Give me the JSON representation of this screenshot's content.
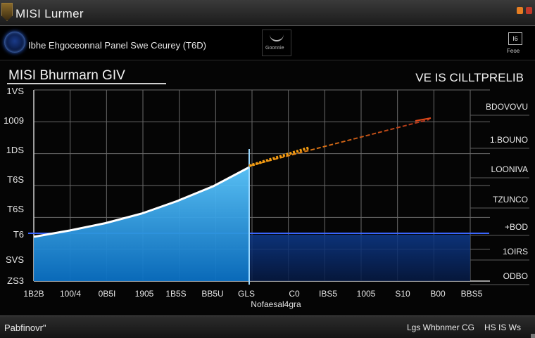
{
  "window": {
    "title": "MISI Lurmer",
    "accent_colors": [
      "#c0392b",
      "#e67e22"
    ]
  },
  "toolbar": {
    "label": "Ibhe Ehgoceonnal Panel Swe Ceurey (T6D)",
    "group_text": "Goonnie",
    "right_box": "I6",
    "right_text": "Feoe"
  },
  "chart": {
    "title": "MISI Bhurmarn GIV",
    "subtitle": "VE IS CILLTPRELIB"
  },
  "chart_data": {
    "type": "area",
    "y_tick_labels": [
      "1VS",
      "1009",
      "1DS",
      "T6S",
      "T6S",
      "T6",
      "SVS",
      "ZS3"
    ],
    "x_tick_labels": [
      "1B2B",
      "100/4",
      "0B5I",
      "1905",
      "1B5S",
      "BB5U",
      "GLS",
      "C0",
      "IBS5",
      "1005",
      "S10",
      "B00",
      "BBS5"
    ],
    "right_labels": [
      "BDOVOVU",
      "1.BOUNO",
      "LOONIVA",
      "TZUNCO",
      "+BOD",
      "1OIRS",
      "ODBO"
    ],
    "x_axis_label": "Nofaesal4gra",
    "grid": true,
    "colors": {
      "area": "#1e9be8",
      "area_light": "#5cc8ff",
      "projection": "#e04a1a",
      "highlight": "#f39c12",
      "band": "#0a2a6a"
    },
    "series": [
      {
        "values": [
          {
            "x": 0,
            "y": 0.42
          },
          {
            "x": 1,
            "y": 0.48
          },
          {
            "x": 2,
            "y": 0.55
          },
          {
            "x": 3,
            "y": 0.64
          },
          {
            "x": 4,
            "y": 0.76
          },
          {
            "x": 5,
            "y": 0.9
          },
          {
            "x": 6,
            "y": 1.08
          }
        ]
      }
    ]
  },
  "status": {
    "left": "Pabfinovr\"",
    "right_1": "Lgs Whbnmer CG",
    "right_2": "HS IS Ws"
  }
}
